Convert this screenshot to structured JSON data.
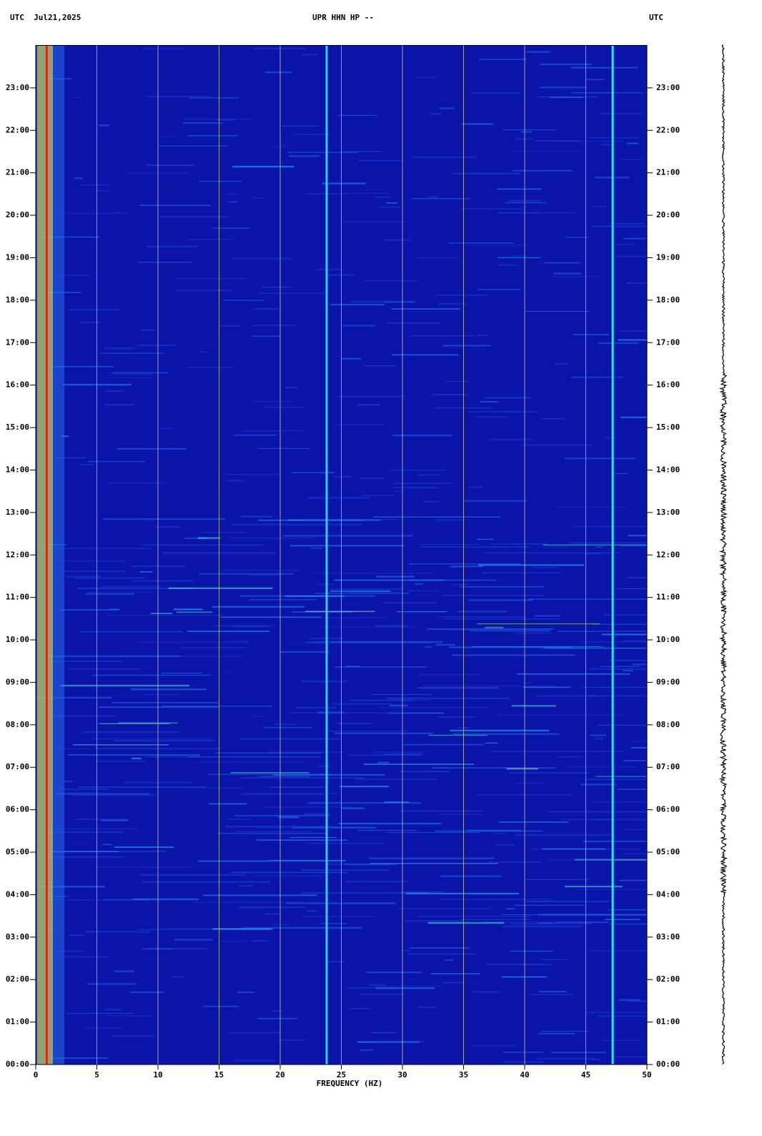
{
  "chart_data": {
    "type": "spectrogram",
    "header_left": "UTC  Jul21,2025",
    "title": "UPR HHN HP --",
    "header_right": "UTC",
    "xlabel": "FREQUENCY (HZ)",
    "xlim": [
      0,
      50
    ],
    "xticks": [
      0,
      5,
      10,
      15,
      20,
      25,
      30,
      35,
      40,
      45,
      50
    ],
    "ylim": [
      0,
      24
    ],
    "yticks": [
      {
        "value": 0,
        "label": "00:00"
      },
      {
        "value": 1,
        "label": "01:00"
      },
      {
        "value": 2,
        "label": "02:00"
      },
      {
        "value": 3,
        "label": "03:00"
      },
      {
        "value": 4,
        "label": "04:00"
      },
      {
        "value": 5,
        "label": "05:00"
      },
      {
        "value": 6,
        "label": "06:00"
      },
      {
        "value": 7,
        "label": "07:00"
      },
      {
        "value": 8,
        "label": "08:00"
      },
      {
        "value": 9,
        "label": "09:00"
      },
      {
        "value": 10,
        "label": "10:00"
      },
      {
        "value": 11,
        "label": "11:00"
      },
      {
        "value": 12,
        "label": "12:00"
      },
      {
        "value": 13,
        "label": "13:00"
      },
      {
        "value": 14,
        "label": "14:00"
      },
      {
        "value": 15,
        "label": "15:00"
      },
      {
        "value": 16,
        "label": "16:00"
      },
      {
        "value": 17,
        "label": "17:00"
      },
      {
        "value": 18,
        "label": "18:00"
      },
      {
        "value": 19,
        "label": "19:00"
      },
      {
        "value": 20,
        "label": "20:00"
      },
      {
        "value": 21,
        "label": "21:00"
      },
      {
        "value": 22,
        "label": "22:00"
      },
      {
        "value": 23,
        "label": "23:00"
      }
    ],
    "grid": true,
    "background": "#0a14a8",
    "spectral_lines": [
      {
        "freq": 0.9,
        "color": "#d82a10"
      },
      {
        "freq": 23.8,
        "color": "#3cc8ff"
      },
      {
        "freq": 47.2,
        "color": "#38e0ff"
      }
    ]
  }
}
